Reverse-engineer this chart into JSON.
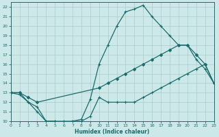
{
  "xlabel": "Humidex (Indice chaleur)",
  "bg_color": "#cce8e8",
  "line_color": "#1a6b6b",
  "grid_color": "#aacccc",
  "xlim": [
    0,
    23
  ],
  "ylim": [
    10,
    22.5
  ],
  "yticks": [
    10,
    11,
    12,
    13,
    14,
    15,
    16,
    17,
    18,
    19,
    20,
    21,
    22
  ],
  "xticks": [
    0,
    1,
    2,
    3,
    4,
    5,
    6,
    7,
    8,
    9,
    10,
    11,
    12,
    13,
    14,
    15,
    16,
    17,
    18,
    19,
    20,
    21,
    22,
    23
  ],
  "curve_peak_x": [
    0,
    1,
    2,
    3,
    4,
    5,
    6,
    7,
    8,
    9,
    10,
    11,
    12,
    13,
    14,
    15,
    16,
    17,
    18,
    19,
    20,
    21,
    22,
    23
  ],
  "curve_peak_y": [
    13.0,
    13.0,
    12.0,
    11.5,
    10.0,
    10.0,
    9.8,
    10.0,
    10.2,
    12.3,
    16.0,
    18.0,
    20.0,
    21.5,
    21.8,
    22.2,
    21.0,
    20.0,
    19.0,
    18.0,
    18.0,
    16.5,
    15.5,
    14.0
  ],
  "curve_mid_x": [
    0,
    1,
    2,
    3,
    10,
    11,
    12,
    13,
    14,
    15,
    16,
    17,
    18,
    19,
    20,
    21,
    22,
    23
  ],
  "curve_mid_y": [
    13.0,
    13.0,
    12.5,
    12.0,
    13.5,
    14.0,
    14.5,
    15.0,
    15.5,
    16.0,
    16.5,
    17.0,
    17.5,
    18.0,
    18.0,
    17.0,
    16.0,
    14.0
  ],
  "curve_low_x": [
    0,
    1,
    2,
    3,
    4,
    5,
    6,
    7,
    8,
    9,
    10,
    11,
    12,
    13,
    14,
    15,
    16,
    17,
    18,
    19,
    20,
    21,
    22,
    23
  ],
  "curve_low_y": [
    13.0,
    12.8,
    12.0,
    11.0,
    10.0,
    10.0,
    10.0,
    10.0,
    10.0,
    10.5,
    12.5,
    12.0,
    12.0,
    12.0,
    12.0,
    12.5,
    13.0,
    13.5,
    14.0,
    14.5,
    15.0,
    15.5,
    16.0,
    14.0
  ]
}
